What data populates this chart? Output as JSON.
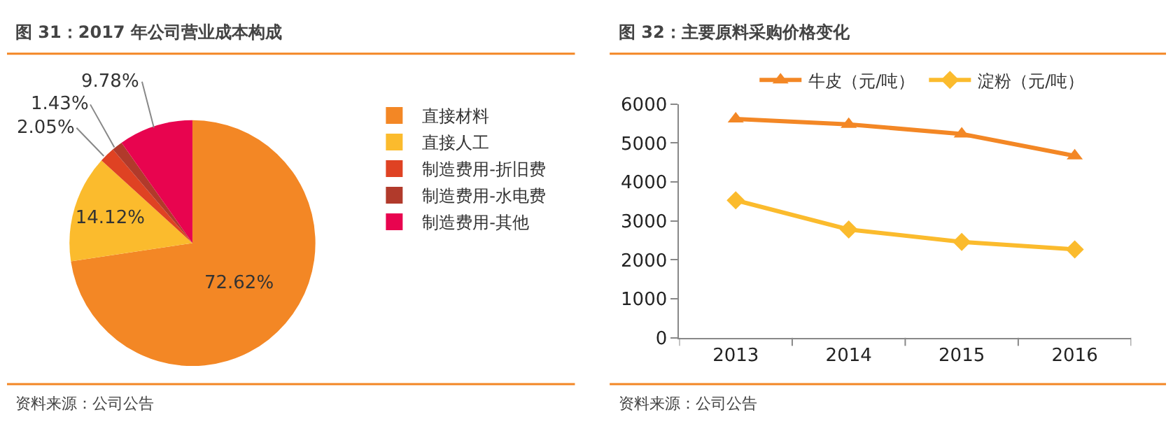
{
  "chart_data": [
    {
      "type": "pie",
      "title": "图 31：2017 年公司营业成本构成",
      "categories": [
        "直接材料",
        "直接人工",
        "制造费用-折旧费",
        "制造费用-水电费",
        "制造费用-其他"
      ],
      "values": [
        72.62,
        14.12,
        2.05,
        1.43,
        9.78
      ],
      "value_labels": [
        "72.62%",
        "14.12%",
        "2.05%",
        "1.43%",
        "9.78%"
      ],
      "colors": [
        "#f38725",
        "#fbbb2d",
        "#df4223",
        "#b13a2b",
        "#e8044f"
      ],
      "legend": "right",
      "annotations": [
        "资料来源：公司公告"
      ]
    },
    {
      "type": "line",
      "title": "图 32：主要原料采购价格变化",
      "categories": [
        "2013",
        "2014",
        "2015",
        "2016"
      ],
      "series": [
        {
          "name": "牛皮（元/吨）",
          "color": "#f38725",
          "marker": "triangle",
          "values": [
            5620,
            5480,
            5230,
            4670
          ]
        },
        {
          "name": "淀粉（元/吨）",
          "color": "#fbbb2d",
          "marker": "diamond",
          "values": [
            3530,
            2780,
            2460,
            2270
          ]
        }
      ],
      "ylim": [
        0,
        6000
      ],
      "yticks": [
        0,
        1000,
        2000,
        3000,
        4000,
        5000,
        6000
      ],
      "legend": "top",
      "annotations": [
        "资料来源：公司公告"
      ]
    }
  ]
}
